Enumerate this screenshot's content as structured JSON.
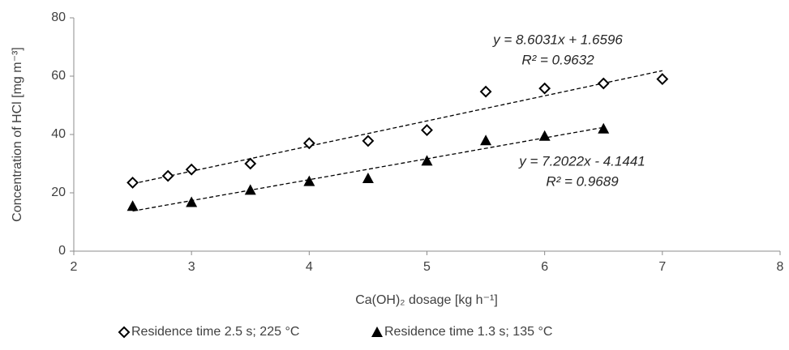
{
  "chart_data": {
    "type": "scatter",
    "x_label": "Ca(OH)₂ dosage [kg h⁻¹]",
    "y_label": "Concentration of HCl [mg m⁻³]",
    "xlim": [
      2,
      8
    ],
    "xticks": [
      2,
      3,
      4,
      5,
      6,
      7,
      8
    ],
    "ylim": [
      0,
      80
    ],
    "yticks": [
      0,
      20,
      40,
      60,
      80
    ],
    "grid": false,
    "trendline": true,
    "legend": "bottom",
    "series": [
      {
        "name": "Residence time 2.5 s; 225 °C",
        "color": "#000000",
        "marker": "diamond-open",
        "x": [
          2.5,
          2.8,
          3,
          3.5,
          4,
          4.5,
          5,
          5.5,
          6,
          6.5,
          7
        ],
        "values": [
          23.5,
          25.8,
          28,
          30,
          37,
          37.8,
          41.5,
          54.7,
          55.8,
          57.5,
          59
        ],
        "equation": "y = 8.6031x + 1.6596",
        "r2": "R² = 0.9632"
      },
      {
        "name": "Residence time 1.3 s; 135 °C",
        "color": "#000000",
        "marker": "triangle",
        "x": [
          2.5,
          3,
          3.5,
          4,
          4.5,
          5,
          5.5,
          6,
          6.5
        ],
        "values": [
          15.5,
          16.8,
          21,
          24,
          25,
          31,
          38,
          39.5,
          42
        ],
        "equation": "y = 7.2022x - 4.1441",
        "r2": "R² = 0.9689"
      }
    ]
  }
}
